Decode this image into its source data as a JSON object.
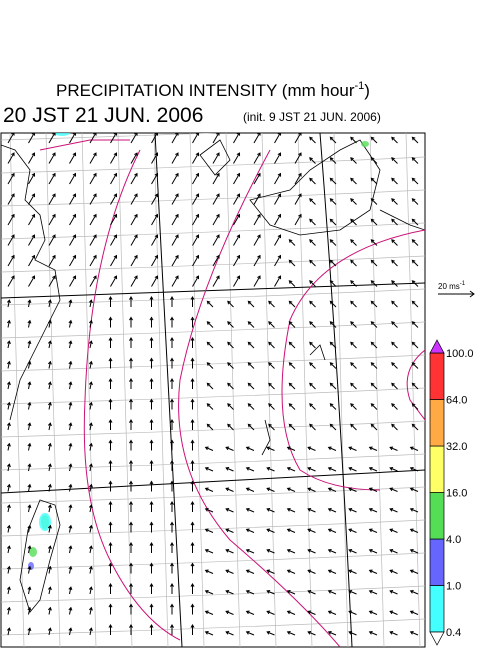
{
  "header": {
    "title": {
      "main": "PRECIPITATION INTENSITY (mm hour",
      "sup": "-1",
      "end": ")"
    },
    "valid": "20 JST 21 JUN. 2006",
    "init": "(init. 9 JST 21 JUN. 2006)"
  },
  "wind_scale": {
    "label": "20 ms",
    "sup": "-1"
  },
  "colorbar": {
    "levels": [
      {
        "value": 0.4,
        "label": "0.4"
      },
      {
        "value": 1.0,
        "label": "1.0"
      },
      {
        "value": 4.0,
        "label": "4.0"
      },
      {
        "value": 16.0,
        "label": "16.0"
      },
      {
        "value": 32.0,
        "label": "32.0"
      },
      {
        "value": 64.0,
        "label": "64.0"
      },
      {
        "value": 100.0,
        "label": "100.0"
      }
    ],
    "colors": [
      "#44ffff",
      "#6666ff",
      "#55dd55",
      "#ffff66",
      "#ffaa44",
      "#ff3333"
    ],
    "over_color": "#cc33ff",
    "under_color": "#ffffff"
  }
}
